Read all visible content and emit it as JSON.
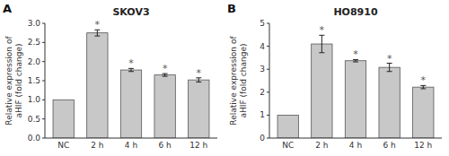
{
  "chart_data": [
    {
      "type": "bar",
      "title": "SKOV3",
      "y_label": "Relative expression of\naHIF (fold change)",
      "categories": [
        "NC",
        "2 h",
        "4 h",
        "6 h",
        "12 h"
      ],
      "values": [
        1.0,
        2.75,
        1.78,
        1.65,
        1.52
      ],
      "errors": [
        0.0,
        0.08,
        0.04,
        0.035,
        0.055
      ],
      "color": "#c8c8c8",
      "ylim": [
        0,
        3.0
      ],
      "yticks": [
        {
          "value": 0.0,
          "label": "0.0"
        },
        0.5,
        {
          "value": 1.0,
          "label": "1.0"
        },
        1.5,
        {
          "value": 2.0,
          "label": "2.0"
        },
        2.5,
        {
          "value": 3.0,
          "label": "3.0"
        }
      ],
      "grid": false,
      "annotations": [
        {
          "text": "A"
        },
        {
          "text": "*",
          "x": "2 h"
        },
        {
          "text": "*",
          "x": "4 h"
        },
        {
          "text": "*",
          "x": "6 h"
        },
        {
          "text": "*",
          "x": "12 h"
        }
      ]
    },
    {
      "type": "bar",
      "title": "HO8910",
      "y_label": "Relative expression of\naHIF (fold change)",
      "categories": [
        "NC",
        "2 h",
        "4 h",
        "6 h",
        "12 h"
      ],
      "values": [
        1.0,
        4.1,
        3.37,
        3.08,
        2.22
      ],
      "errors": [
        0.0,
        0.38,
        0.05,
        0.18,
        0.07
      ],
      "color": "#c8c8c8",
      "ylim": [
        0,
        5.0
      ],
      "yticks": [
        0,
        1,
        2,
        3,
        4,
        5
      ],
      "grid": false,
      "annotations": [
        {
          "text": "B"
        },
        {
          "text": "*",
          "x": "2 h"
        },
        {
          "text": "*",
          "x": "4 h"
        },
        {
          "text": "*",
          "x": "6 h"
        },
        {
          "text": "*",
          "x": "12 h"
        }
      ]
    }
  ]
}
